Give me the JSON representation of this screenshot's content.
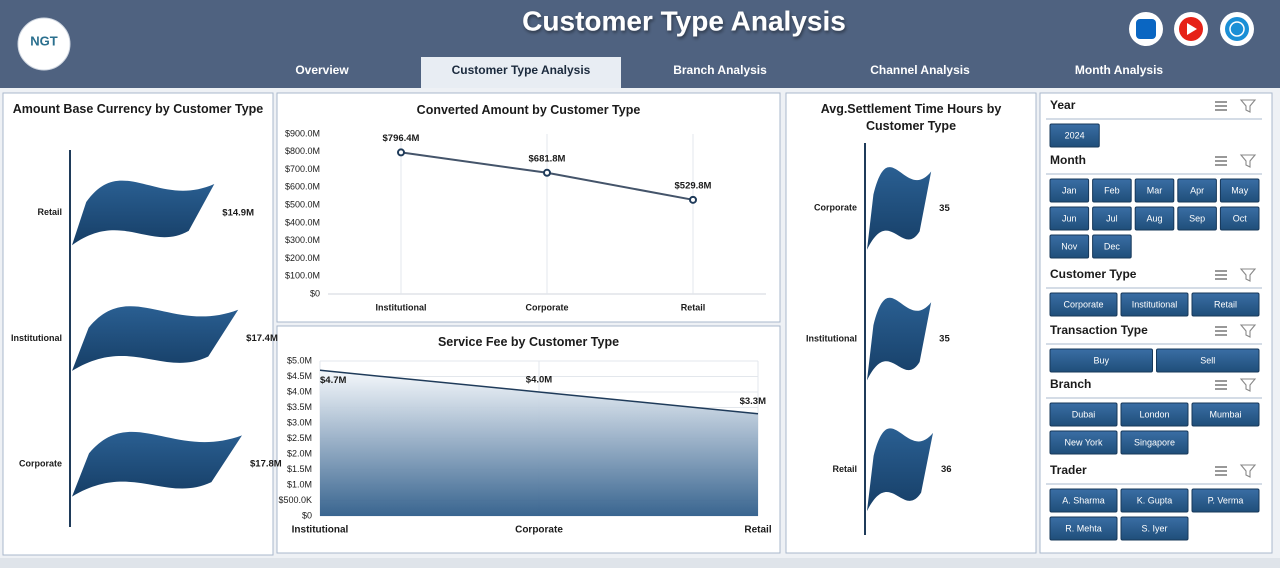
{
  "header": {
    "title": "Customer Type Analysis",
    "logo": "NGT",
    "tabs": [
      "Overview",
      "Customer Type Analysis",
      "Branch Analysis",
      "Channel Analysis",
      "Month Analysis"
    ],
    "active_tab": 1
  },
  "chart_data": [
    {
      "type": "flag-bar",
      "title": "Amount Base Currency by Customer Type",
      "categories": [
        "Retail",
        "Institutional",
        "Corporate"
      ],
      "values": [
        14.9,
        17.4,
        17.8
      ],
      "value_labels": [
        "$14.9M",
        "$17.4M",
        "$17.8M"
      ],
      "color": "#1f4e79"
    },
    {
      "type": "line",
      "title": "Converted Amount by Customer Type",
      "categories": [
        "Institutional",
        "Corporate",
        "Retail"
      ],
      "values": [
        796.4,
        681.8,
        529.8
      ],
      "value_labels": [
        "$796.4M",
        "$681.8M",
        "$529.8M"
      ],
      "color": "#44546a",
      "ylim": [
        0,
        900
      ],
      "yticks": [
        {
          "value": 0,
          "label": "$0"
        },
        {
          "value": 100,
          "label": "$100.0M"
        },
        {
          "value": 200,
          "label": "$200.0M"
        },
        {
          "value": 300,
          "label": "$300.0M"
        },
        {
          "value": 400,
          "label": "$400.0M"
        },
        {
          "value": 500,
          "label": "$500.0M"
        },
        {
          "value": 600,
          "label": "$600.0M"
        },
        {
          "value": 700,
          "label": "$700.0M"
        },
        {
          "value": 800,
          "label": "$800.0M"
        },
        {
          "value": 900,
          "label": "$900.0M"
        }
      ]
    },
    {
      "type": "area",
      "title": "Service Fee by Customer Type",
      "categories": [
        "Institutional",
        "Corporate",
        "Retail"
      ],
      "values": [
        4.7,
        4.0,
        3.3
      ],
      "value_labels": [
        "$4.7M",
        "$4.0M",
        "$3.3M"
      ],
      "color": "#2f5d8a",
      "ylim": [
        0,
        5
      ],
      "yticks": [
        {
          "value": 0,
          "label": "$0"
        },
        {
          "value": 0.5,
          "label": "$500.0K"
        },
        {
          "value": 1,
          "label": "$1.0M"
        },
        {
          "value": 1.5,
          "label": "$1.5M"
        },
        {
          "value": 2,
          "label": "$2.0M"
        },
        {
          "value": 2.5,
          "label": "$2.5M"
        },
        {
          "value": 3,
          "label": "$3.0M"
        },
        {
          "value": 3.5,
          "label": "$3.5M"
        },
        {
          "value": 4,
          "label": "$4.0M"
        },
        {
          "value": 4.5,
          "label": "$4.5M"
        },
        {
          "value": 5,
          "label": "$5.0M"
        }
      ],
      "grid": true
    },
    {
      "type": "flag-bar",
      "title": "Avg.Settlement Time Hours by Customer Type",
      "categories": [
        "Corporate",
        "Institutional",
        "Retail"
      ],
      "values": [
        35,
        35,
        36
      ],
      "color": "#1f4e79"
    }
  ],
  "slicers": [
    {
      "title": "Year",
      "items": [
        "2024"
      ]
    },
    {
      "title": "Month",
      "items": [
        "Jan",
        "Feb",
        "Mar",
        "Apr",
        "May",
        "Jun",
        "Jul",
        "Aug",
        "Sep",
        "Oct",
        "Nov",
        "Dec"
      ]
    },
    {
      "title": "Customer Type",
      "items": [
        "Corporate",
        "Institutional",
        "Retail"
      ]
    },
    {
      "title": "Transaction Type",
      "items": [
        "Buy",
        "Sell"
      ]
    },
    {
      "title": "Branch",
      "items": [
        "Dubai",
        "London",
        "Mumbai",
        "New York",
        "Singapore"
      ]
    },
    {
      "title": "Trader",
      "items": [
        "A. Sharma",
        "K. Gupta",
        "P. Verma",
        "R. Mehta",
        "S. Iyer"
      ]
    }
  ]
}
